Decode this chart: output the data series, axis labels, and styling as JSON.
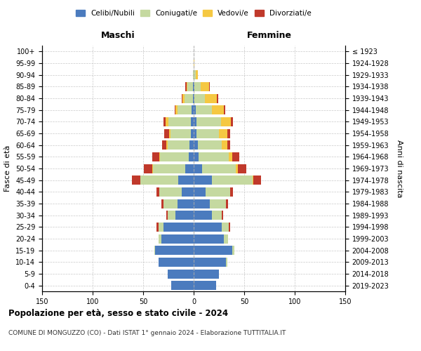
{
  "age_groups": [
    "0-4",
    "5-9",
    "10-14",
    "15-19",
    "20-24",
    "25-29",
    "30-34",
    "35-39",
    "40-44",
    "45-49",
    "50-54",
    "55-59",
    "60-64",
    "65-69",
    "70-74",
    "75-79",
    "80-84",
    "85-89",
    "90-94",
    "95-99",
    "100+"
  ],
  "birth_years": [
    "2019-2023",
    "2014-2018",
    "2009-2013",
    "2004-2008",
    "1999-2003",
    "1994-1998",
    "1989-1993",
    "1984-1988",
    "1979-1983",
    "1974-1978",
    "1969-1973",
    "1964-1968",
    "1959-1963",
    "1954-1958",
    "1949-1953",
    "1944-1948",
    "1939-1943",
    "1934-1938",
    "1929-1933",
    "1924-1928",
    "≤ 1923"
  ],
  "colors": {
    "celibi": "#4B7BBE",
    "coniugati": "#C5D9A0",
    "vedovi": "#F5C842",
    "divorziati": "#C0392B"
  },
  "males": {
    "celibi": [
      22,
      26,
      35,
      38,
      32,
      30,
      18,
      16,
      12,
      15,
      8,
      5,
      4,
      3,
      3,
      2,
      1,
      1,
      0,
      0,
      0
    ],
    "coniugati": [
      0,
      0,
      0,
      1,
      3,
      5,
      8,
      14,
      22,
      38,
      32,
      28,
      22,
      20,
      22,
      14,
      8,
      5,
      1,
      0,
      0
    ],
    "vedovi": [
      0,
      0,
      0,
      0,
      0,
      0,
      0,
      0,
      0,
      0,
      1,
      1,
      1,
      1,
      3,
      2,
      2,
      1,
      0,
      0,
      0
    ],
    "divorziati": [
      0,
      0,
      0,
      0,
      0,
      2,
      1,
      2,
      3,
      8,
      8,
      7,
      4,
      5,
      2,
      1,
      1,
      1,
      0,
      0,
      0
    ]
  },
  "females": {
    "celibi": [
      22,
      25,
      32,
      38,
      30,
      28,
      18,
      16,
      12,
      18,
      8,
      5,
      4,
      3,
      3,
      2,
      1,
      1,
      0,
      0,
      0
    ],
    "coniugati": [
      0,
      0,
      1,
      2,
      4,
      7,
      10,
      16,
      24,
      40,
      34,
      30,
      24,
      22,
      24,
      16,
      10,
      6,
      2,
      0,
      0
    ],
    "vedovi": [
      0,
      0,
      0,
      0,
      0,
      0,
      0,
      0,
      0,
      1,
      2,
      3,
      5,
      8,
      10,
      12,
      12,
      8,
      2,
      1,
      0
    ],
    "divorziati": [
      0,
      0,
      0,
      0,
      0,
      1,
      1,
      2,
      3,
      8,
      8,
      7,
      3,
      3,
      2,
      1,
      1,
      1,
      0,
      0,
      0
    ]
  },
  "title": "Popolazione per età, sesso e stato civile - 2024",
  "subtitle": "COMUNE DI MONGUZZO (CO) - Dati ISTAT 1° gennaio 2024 - Elaborazione TUTTITALIA.IT",
  "xlabel_left": "Maschi",
  "xlabel_right": "Femmine",
  "ylabel_left": "Fasce di età",
  "ylabel_right": "Anni di nascita",
  "xlim": 150,
  "background_color": "#ffffff",
  "grid_color": "#bbbbbb"
}
